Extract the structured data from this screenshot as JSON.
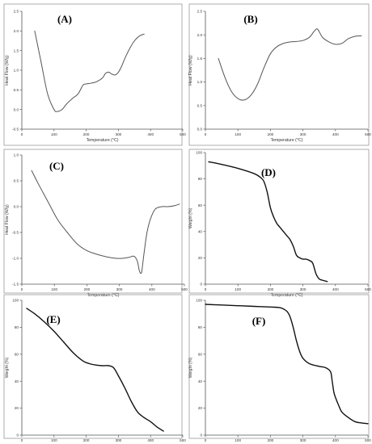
{
  "chart_data": [
    {
      "type": "line",
      "panel_label": "(A)",
      "xlabel": "Temperature (°C)",
      "ylabel": "Heat Flow (W/g)",
      "xlim": [
        0,
        500
      ],
      "ylim": [
        -0.5,
        2.5
      ],
      "x_ticks": [
        "0",
        "100",
        "200",
        "300",
        "400",
        "500"
      ],
      "y_ticks": [
        "-0.5",
        "0.0",
        "0.5",
        "1.0",
        "1.5",
        "2.0",
        "2.5"
      ],
      "line_color": "#555555",
      "series": [
        {
          "x": [
            40,
            60,
            80,
            100,
            110,
            125,
            140,
            160,
            175,
            190,
            200,
            215,
            230,
            250,
            260,
            270,
            280,
            290,
            300,
            310,
            320,
            335,
            350,
            365,
            380
          ],
          "y": [
            2.0,
            1.2,
            0.4,
            0.0,
            -0.05,
            0.0,
            0.15,
            0.3,
            0.4,
            0.62,
            0.65,
            0.67,
            0.7,
            0.8,
            0.92,
            0.95,
            0.9,
            0.88,
            0.95,
            1.1,
            1.3,
            1.55,
            1.75,
            1.87,
            1.92
          ]
        }
      ]
    },
    {
      "type": "line",
      "panel_label": "(B)",
      "xlabel": "Temperature (°C)",
      "ylabel": "Heat Flow (W/g)",
      "xlim": [
        0,
        500
      ],
      "ylim": [
        0.0,
        2.5
      ],
      "x_ticks": [
        "0",
        "100",
        "200",
        "300",
        "400",
        "500"
      ],
      "y_ticks": [
        "0.0",
        "0.5",
        "1.0",
        "1.5",
        "2.0",
        "2.5"
      ],
      "line_color": "#555555",
      "series": [
        {
          "x": [
            40,
            60,
            80,
            100,
            120,
            140,
            160,
            180,
            200,
            220,
            240,
            260,
            280,
            300,
            320,
            335,
            345,
            360,
            380,
            400,
            420,
            440,
            460,
            480
          ],
          "y": [
            1.5,
            1.1,
            0.8,
            0.65,
            0.62,
            0.72,
            0.95,
            1.3,
            1.6,
            1.75,
            1.82,
            1.85,
            1.86,
            1.88,
            1.95,
            2.08,
            2.12,
            1.95,
            1.85,
            1.8,
            1.82,
            1.92,
            1.97,
            1.98
          ]
        }
      ]
    },
    {
      "type": "line",
      "panel_label": "(C)",
      "xlabel": "Temperature (°C)",
      "ylabel": "Heat Flow (W/g)",
      "xlim": [
        0,
        500
      ],
      "ylim": [
        -1.5,
        1.0
      ],
      "x_ticks": [
        "0",
        "100",
        "200",
        "300",
        "400",
        "500"
      ],
      "y_ticks": [
        "-1.5",
        "-1.0",
        "-0.5",
        "0.0",
        "0.5",
        "1.0"
      ],
      "line_color": "#555555",
      "series": [
        {
          "x": [
            30,
            50,
            80,
            110,
            140,
            170,
            200,
            230,
            260,
            290,
            310,
            330,
            345,
            355,
            362,
            368,
            372,
            378,
            385,
            395,
            410,
            430,
            450,
            470,
            485
          ],
          "y": [
            0.7,
            0.45,
            0.1,
            -0.25,
            -0.5,
            -0.72,
            -0.85,
            -0.92,
            -0.97,
            -1.0,
            -1.0,
            -0.98,
            -0.96,
            -1.05,
            -1.25,
            -1.28,
            -1.1,
            -0.8,
            -0.5,
            -0.25,
            -0.05,
            0.0,
            0.0,
            0.02,
            0.05
          ]
        }
      ]
    },
    {
      "type": "line",
      "panel_label": "(D)",
      "xlabel": "Temperature (°C)",
      "ylabel": "Weight (%)",
      "xlim": [
        0,
        500
      ],
      "ylim": [
        0,
        100
      ],
      "x_ticks": [
        "0",
        "100",
        "200",
        "300",
        "400",
        "500"
      ],
      "y_ticks": [
        "0",
        "20",
        "40",
        "60",
        "80",
        "100"
      ],
      "line_color": "#111111",
      "series": [
        {
          "x": [
            10,
            50,
            100,
            150,
            170,
            180,
            190,
            200,
            210,
            220,
            230,
            240,
            250,
            260,
            270,
            280,
            290,
            300,
            310,
            320,
            330,
            340,
            350,
            360,
            375
          ],
          "y": [
            93,
            91,
            88,
            84,
            81,
            78,
            70,
            58,
            51,
            46,
            43,
            40,
            37,
            34,
            29,
            22,
            20,
            19,
            19,
            18,
            16,
            8,
            4,
            3,
            2
          ]
        }
      ]
    },
    {
      "type": "line",
      "panel_label": "(E)",
      "xlabel": "Temperature (°C)",
      "ylabel": "Weight (%)",
      "xlim": [
        0,
        500
      ],
      "ylim": [
        0,
        100
      ],
      "x_ticks": [
        "0",
        "100",
        "200",
        "300",
        "400",
        "500"
      ],
      "y_ticks": [
        "0",
        "20",
        "40",
        "60",
        "80",
        "100"
      ],
      "line_color": "#111111",
      "series": [
        {
          "x": [
            15,
            40,
            70,
            100,
            130,
            160,
            190,
            210,
            230,
            250,
            270,
            285,
            300,
            320,
            340,
            360,
            380,
            400,
            420,
            440
          ],
          "y": [
            94,
            90,
            84,
            77,
            69,
            61,
            55,
            53,
            52,
            51.5,
            51.5,
            50,
            44,
            35,
            25,
            17,
            13,
            10,
            6,
            3
          ]
        }
      ]
    },
    {
      "type": "line",
      "panel_label": "(F)",
      "xlabel": "Temperature (°C)",
      "ylabel": "Weight (%)",
      "xlim": [
        0,
        500
      ],
      "ylim": [
        0,
        100
      ],
      "x_ticks": [
        "0",
        "100",
        "200",
        "300",
        "400",
        "500"
      ],
      "y_ticks": [
        "0",
        "20",
        "40",
        "60",
        "80",
        "100"
      ],
      "line_color": "#111111",
      "series": [
        {
          "x": [
            0,
            50,
            100,
            150,
            200,
            230,
            250,
            260,
            270,
            280,
            290,
            300,
            320,
            350,
            370,
            385,
            390,
            395,
            400,
            410,
            420,
            440,
            460,
            480,
            500
          ],
          "y": [
            97,
            96.5,
            96,
            95.5,
            95,
            94.5,
            92,
            88,
            80,
            70,
            62,
            57,
            53,
            51,
            50,
            47,
            40,
            32,
            28,
            22,
            17,
            13,
            10,
            9,
            8.5
          ]
        }
      ]
    }
  ]
}
